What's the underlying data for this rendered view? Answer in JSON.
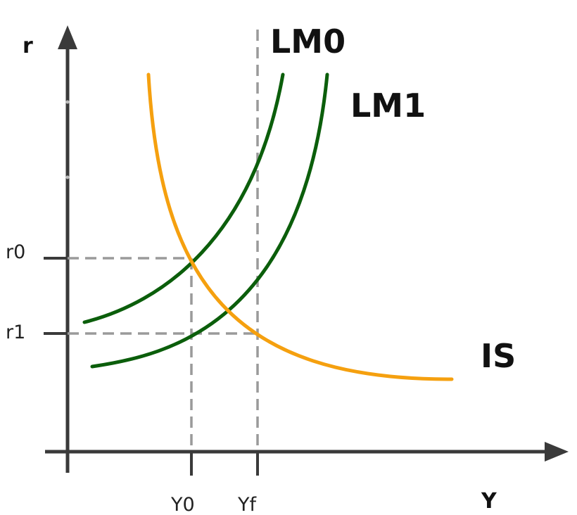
{
  "axes": {
    "y_label": "r",
    "x_label": "Y"
  },
  "ticks": {
    "r0": "r0",
    "r1": "r1",
    "Y0": "Y0",
    "Yf": "Yf"
  },
  "curves": {
    "lm0": {
      "label": "LM0",
      "color": "#0b5e0b"
    },
    "lm1": {
      "label": "LM1",
      "color": "#0b5e0b"
    },
    "is": {
      "label": "IS",
      "color": "#f5a00f"
    }
  },
  "colors": {
    "axis": "#3a3a3a",
    "guide": "#9a9a9a"
  }
}
